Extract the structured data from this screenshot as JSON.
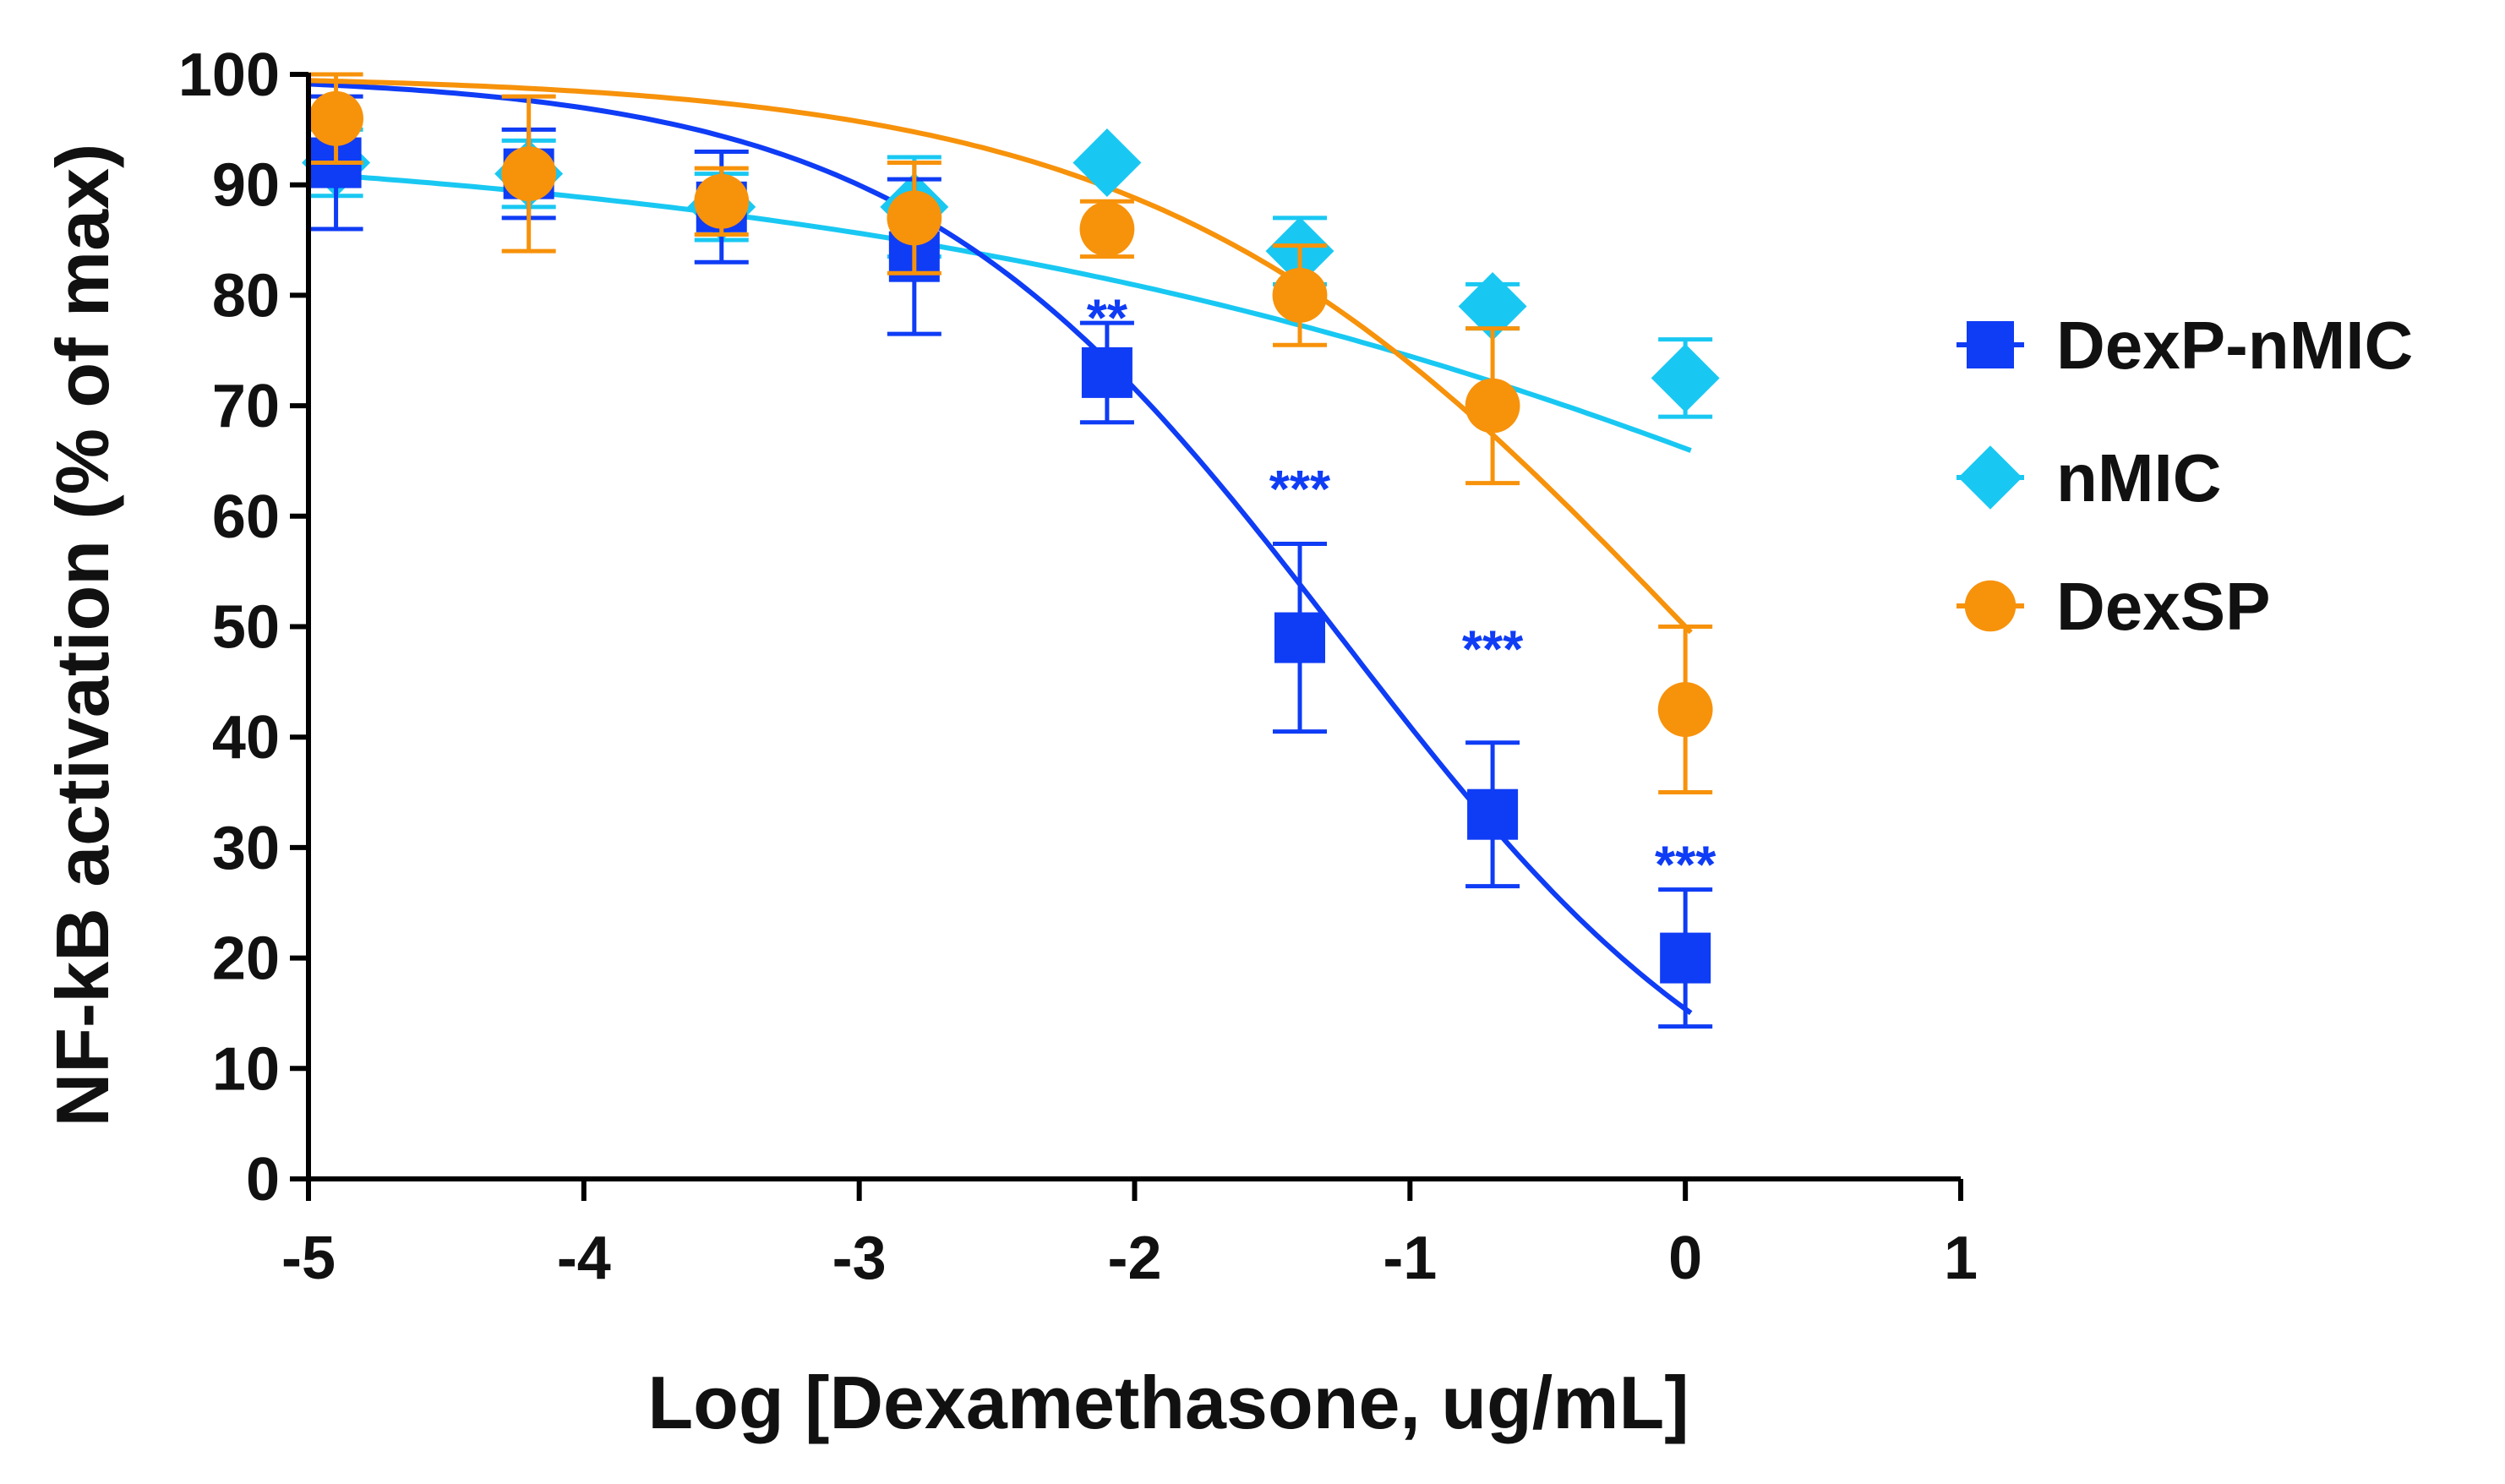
{
  "chart_data": {
    "type": "scatter",
    "xlabel": "Log [Dexamethasone, ug/mL]",
    "ylabel": "NF-kB activation (% of max)",
    "xlim": [
      -5,
      1
    ],
    "ylim": [
      0,
      100
    ],
    "xticks": [
      -5,
      -4,
      -3,
      -2,
      -1,
      0,
      1
    ],
    "yticks": [
      0,
      10,
      20,
      30,
      40,
      50,
      60,
      70,
      80,
      90,
      100
    ],
    "xtick_labels": [
      "-5",
      "-4",
      "-3",
      "-2",
      "-1",
      "0",
      "1"
    ],
    "ytick_labels": [
      "0",
      "10",
      "20",
      "30",
      "40",
      "50",
      "60",
      "70",
      "80",
      "90",
      "100"
    ],
    "legend_position": "right",
    "series": [
      {
        "name": "DexP-nMIC",
        "color": "#0f3cf5",
        "marker": "square",
        "x": [
          -4.9,
          -4.2,
          -3.5,
          -2.8,
          -2.1,
          -1.4,
          -0.7,
          0
        ],
        "y": [
          92,
          91,
          88,
          83.5,
          73,
          49,
          33,
          20
        ],
        "err": [
          6,
          4,
          5,
          7,
          4.5,
          8.5,
          6.5,
          6.2
        ],
        "fit": {
          "top": 100,
          "bottom": -2,
          "logIC50": -1.25,
          "hill": 0.55
        }
      },
      {
        "name": "nMIC",
        "color": "#19c8f2",
        "marker": "diamond",
        "x": [
          -4.9,
          -4.2,
          -3.5,
          -2.8,
          -2.1,
          -1.4,
          -0.7,
          0
        ],
        "y": [
          92,
          91,
          88,
          88,
          92,
          84,
          79,
          72.5
        ],
        "err": [
          3,
          3,
          3,
          4.5,
          0,
          3,
          2,
          3.5
        ],
        "fit": {
          "top": 95,
          "bottom": 0,
          "logIC50": 1.8,
          "hill": 0.2
        }
      },
      {
        "name": "DexSP",
        "color": "#f7920b",
        "marker": "circle",
        "x": [
          -4.9,
          -4.2,
          -3.5,
          -2.8,
          -2.1,
          -1.4,
          -0.7,
          0
        ],
        "y": [
          96,
          91,
          88.5,
          87,
          86,
          80,
          70,
          42.5
        ],
        "err": [
          4,
          7,
          3,
          5,
          2.5,
          4.5,
          7,
          7.5
        ],
        "fit": {
          "top": 100,
          "bottom": 0,
          "logIC50": 0,
          "hill": 0.45
        }
      }
    ],
    "annotations": [
      {
        "text": "**",
        "x": -2.1,
        "y": 78,
        "color": "#0f3cf5"
      },
      {
        "text": "***",
        "x": -1.4,
        "y": 62.5,
        "color": "#0f3cf5"
      },
      {
        "text": "***",
        "x": -0.7,
        "y": 48,
        "color": "#0f3cf5"
      },
      {
        "text": "***",
        "x": 0,
        "y": 28.5,
        "color": "#0f3cf5"
      }
    ]
  }
}
